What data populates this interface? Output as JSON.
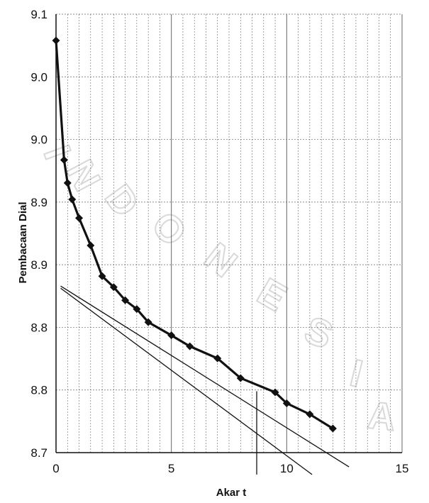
{
  "chart_data": {
    "type": "line",
    "title": "",
    "xlabel": "Akar t",
    "ylabel": "Pembacaan Dial",
    "xlim": [
      0,
      15
    ],
    "ylim": [
      8.7,
      9.1
    ],
    "x_ticks": [
      "0",
      "5",
      "10",
      "15"
    ],
    "y_ticks": [
      "8.7",
      "8.8",
      "8.8",
      "8.9",
      "8.9",
      "9.0",
      "9.0",
      "9.1"
    ],
    "grid": true,
    "legend": "none",
    "watermark_text": "INDONESIA",
    "colors": {
      "series": "#111111",
      "grid": "#666666",
      "watermark": "#d9d9d9"
    },
    "series": [
      {
        "marker": "diamond",
        "x": [
          0.0,
          0.35,
          0.5,
          0.7,
          1.0,
          1.5,
          2.0,
          2.5,
          3.0,
          3.5,
          4.0,
          5.0,
          5.8,
          7.0,
          8.0,
          9.5,
          10.0,
          11.0,
          12.0
        ],
        "y": [
          9.076,
          8.967,
          8.946,
          8.931,
          8.914,
          8.889,
          8.861,
          8.851,
          8.839,
          8.831,
          8.819,
          8.807,
          8.797,
          8.786,
          8.768,
          8.755,
          8.745,
          8.735,
          8.722
        ]
      }
    ],
    "reference_lines": [
      {
        "x": [
          0.2,
          12.7
        ],
        "y": [
          8.852,
          8.687
        ]
      },
      {
        "x": [
          0.2,
          11.1
        ],
        "y": [
          8.85,
          8.68
        ]
      },
      {
        "x": [
          8.7,
          8.7
        ],
        "y": [
          8.756,
          8.68
        ]
      }
    ]
  }
}
